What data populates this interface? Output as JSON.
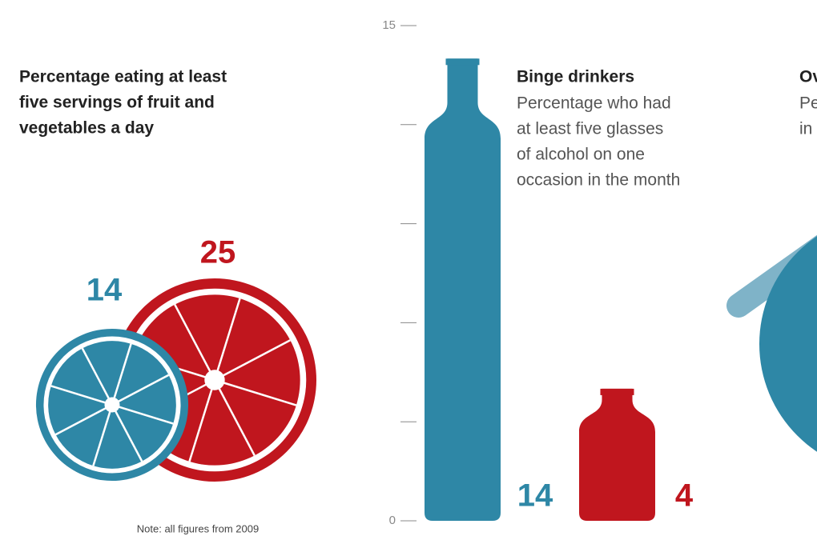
{
  "chart_data": [
    {
      "type": "bubble",
      "title": [
        "Percentage eating at least",
        "five servings of fruit and",
        "vegetables a day"
      ],
      "values": [
        14,
        25
      ],
      "colors": [
        "#2e87a6",
        "#c0161e"
      ],
      "note": "Note: all figures from 2009"
    },
    {
      "type": "bottle",
      "title": "Binge drinkers",
      "subtitle": [
        "Percentage who had",
        "at least five glasses",
        "of alcohol on one",
        "occasion in the month"
      ],
      "values": [
        14,
        4
      ],
      "colors": [
        "#2e87a6",
        "#c0161e"
      ],
      "ylim": [
        0,
        15
      ],
      "yticks": [
        0,
        15
      ],
      "minor_yticks": [
        3,
        6,
        9,
        12
      ]
    },
    {
      "type": "pie",
      "title": "Ov",
      "subtitle": [
        "Pe",
        "in"
      ]
    }
  ]
}
